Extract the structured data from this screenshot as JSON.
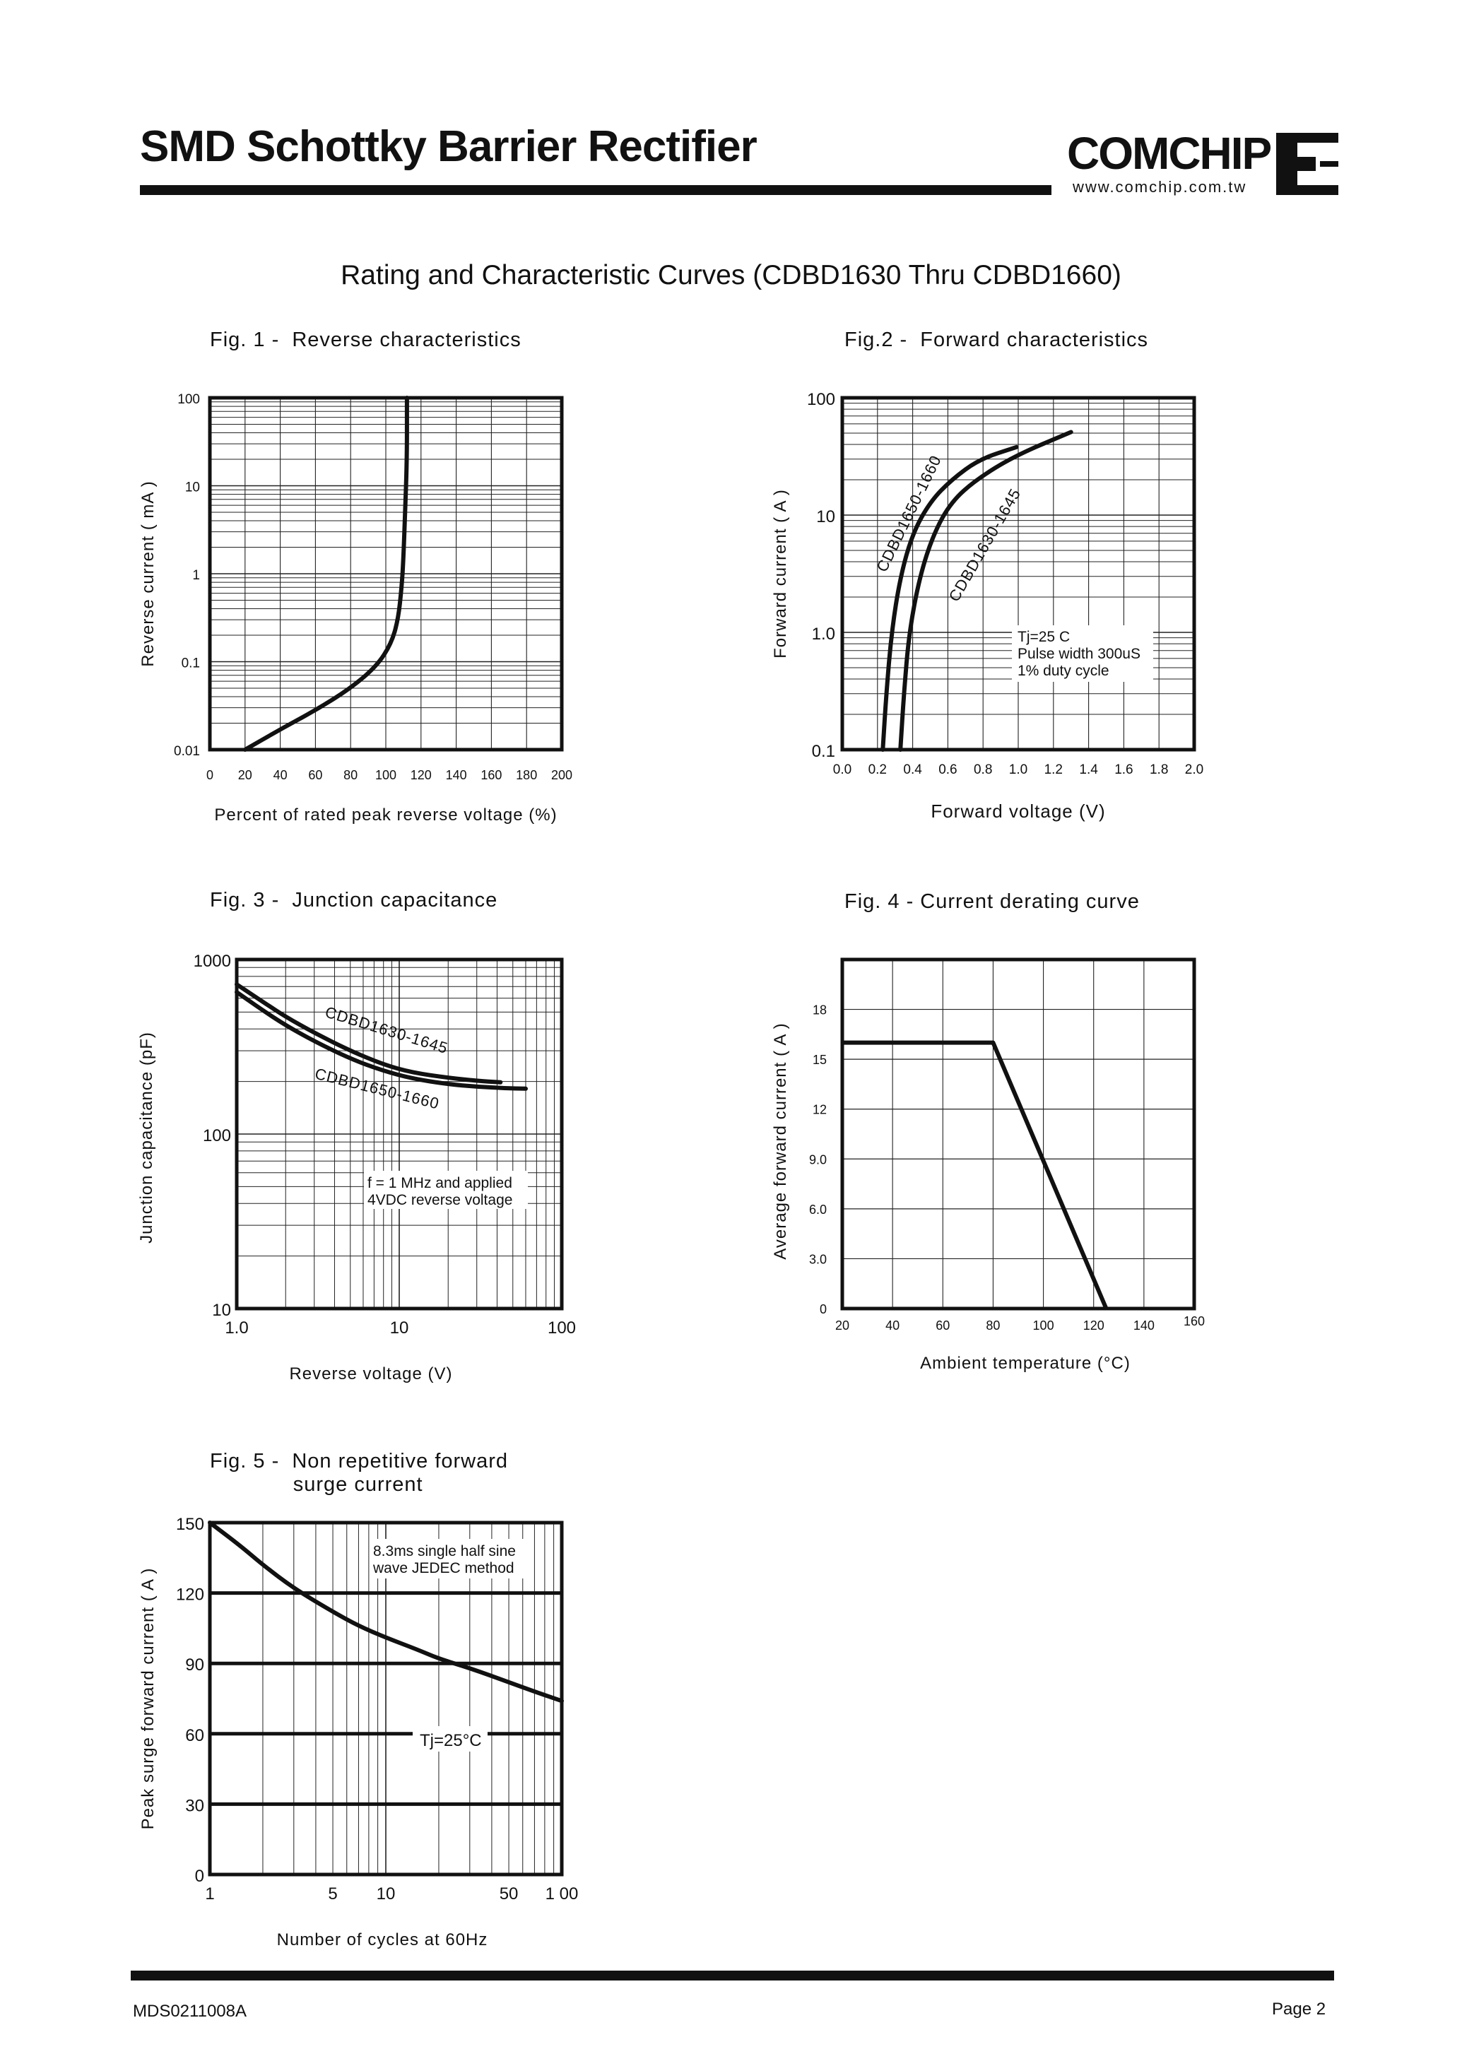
{
  "header": {
    "title": "SMD Schottky Barrier Rectifier",
    "brand": "COMCHIP",
    "website": "www.comchip.com.tw"
  },
  "page_title": "Rating and Characteristic Curves (CDBD1630 Thru CDBD1660)",
  "footer": {
    "doc_id": "MDS0211008A",
    "page": "Page 2"
  },
  "chart_data": [
    {
      "id": "fig1",
      "type": "line",
      "title": "Fig. 1 -  Reverse characteristics",
      "xlabel": "Percent of rated peak reverse voltage (%)",
      "ylabel": "Reverse current ( mA )",
      "xscale": "linear",
      "yscale": "log",
      "xlim": [
        0,
        200
      ],
      "ylim": [
        0.01,
        100
      ],
      "xticks": [
        0,
        20,
        40,
        60,
        80,
        100,
        120,
        140,
        160,
        180,
        200
      ],
      "xtick_labels": [
        "0",
        "20",
        "40",
        "60",
        "80",
        "100",
        "120",
        "140",
        "160",
        "180",
        "200"
      ],
      "yticks": [
        100,
        10,
        1,
        0.1,
        0.01
      ],
      "ytick_labels": [
        "100",
        "10",
        "1",
        "0.1",
        "0.01"
      ],
      "grid": true,
      "series": [
        {
          "x": [
            20,
            40,
            60,
            80,
            95,
            103,
            107,
            109,
            110,
            111,
            112,
            112
          ],
          "y": [
            0.01,
            0.017,
            0.028,
            0.05,
            0.09,
            0.16,
            0.3,
            0.7,
            1.5,
            5,
            20,
            100
          ]
        }
      ],
      "annotations": []
    },
    {
      "id": "fig2",
      "type": "line",
      "title": "Fig.2 -  Forward characteristics",
      "xlabel": "Forward voltage (V)",
      "ylabel": "Forward current ( A )",
      "xscale": "linear",
      "yscale": "log",
      "xlim": [
        0,
        2.0
      ],
      "ylim": [
        0.1,
        100
      ],
      "xticks": [
        0,
        0.2,
        0.4,
        0.6,
        0.8,
        1.0,
        1.2,
        1.4,
        1.6,
        1.8,
        2.0
      ],
      "xtick_labels": [
        "0.0",
        "0.2",
        "0.4",
        "0.6",
        "0.8",
        "1.0",
        "1.2",
        "1.4",
        "1.6",
        "1.8",
        "2.0"
      ],
      "yticks": [
        100,
        10,
        1.0,
        0.1
      ],
      "ytick_labels": [
        "100",
        "10",
        "1.0",
        "0.1"
      ],
      "grid": true,
      "series": [
        {
          "name": "CDBD1650-1660",
          "x": [
            0.23,
            0.25,
            0.28,
            0.33,
            0.4,
            0.5,
            0.62,
            0.78,
            0.99
          ],
          "y": [
            0.1,
            0.3,
            1,
            3,
            7,
            13,
            20,
            30,
            38
          ]
        },
        {
          "name": "CDBD1630-1645",
          "x": [
            0.33,
            0.35,
            0.38,
            0.44,
            0.52,
            0.62,
            0.76,
            0.98,
            1.3
          ],
          "y": [
            0.1,
            0.3,
            1,
            3,
            7,
            13,
            20,
            32,
            51
          ]
        }
      ],
      "annotations": [
        "Tj=25 C",
        "Pulse width 300uS",
        "1% duty cycle"
      ]
    },
    {
      "id": "fig3",
      "type": "line",
      "title": "Fig. 3 -  Junction capacitance",
      "xlabel": "Reverse voltage (V)",
      "ylabel": "Junction capacitance  (pF)",
      "xscale": "log",
      "yscale": "log",
      "xlim": [
        1,
        100
      ],
      "ylim": [
        10,
        1000
      ],
      "xticks": [
        1,
        10,
        100
      ],
      "xtick_labels": [
        "1.0",
        "10",
        "100"
      ],
      "yticks": [
        1000,
        100,
        10
      ],
      "ytick_labels": [
        "1000",
        "100",
        "10"
      ],
      "grid": true,
      "series": [
        {
          "name": "CDBD1630-1645",
          "x": [
            1,
            1.5,
            2,
            3,
            5,
            8,
            12,
            20,
            30,
            42
          ],
          "y": [
            720,
            560,
            470,
            380,
            300,
            250,
            225,
            210,
            202,
            198
          ]
        },
        {
          "name": "CDBD1650-1660",
          "x": [
            1,
            1.5,
            2,
            3,
            5,
            8,
            12,
            20,
            30,
            45,
            60
          ],
          "y": [
            650,
            500,
            420,
            340,
            270,
            230,
            208,
            193,
            187,
            183,
            182
          ]
        }
      ],
      "annotations": [
        "f = 1 MHz and applied",
        "4VDC reverse voltage"
      ]
    },
    {
      "id": "fig4",
      "type": "line",
      "title": "Fig. 4 - Current derating curve",
      "xlabel": "Ambient temperature (°C)",
      "ylabel": "Average forward current ( A )",
      "xscale": "linear",
      "yscale": "linear",
      "xlim": [
        20,
        160
      ],
      "ylim": [
        0,
        21
      ],
      "xticks": [
        20,
        40,
        60,
        80,
        100,
        120,
        140,
        160
      ],
      "xtick_labels": [
        "20",
        "40",
        "60",
        "80",
        "100",
        "120",
        "140",
        "160"
      ],
      "yticks": [
        0,
        3,
        6,
        9,
        12,
        15,
        18
      ],
      "ytick_labels": [
        "0",
        "3.0",
        "6.0",
        "9.0",
        "12",
        "15",
        "18"
      ],
      "grid": true,
      "series": [
        {
          "x": [
            20,
            80,
            125
          ],
          "y": [
            16,
            16,
            0
          ]
        }
      ],
      "annotations": []
    },
    {
      "id": "fig5",
      "type": "line",
      "title": "Fig. 5 -  Non repetitive forward\n             surge current",
      "xlabel": "Number of cycles at 60Hz",
      "ylabel": "Peak surge forward current ( A )",
      "xscale": "log",
      "yscale": "linear",
      "xlim": [
        1,
        100
      ],
      "ylim": [
        0,
        150
      ],
      "xticks": [
        1,
        5,
        10,
        50,
        100
      ],
      "xtick_labels": [
        "1",
        "5",
        "10",
        "50",
        "1 00"
      ],
      "yticks": [
        150,
        120,
        90,
        60,
        30,
        0
      ],
      "ytick_labels": [
        "150",
        "120",
        "90",
        "60",
        "30",
        "0"
      ],
      "grid": true,
      "series": [
        {
          "x": [
            1,
            1.5,
            2,
            3,
            5,
            7,
            10,
            15,
            20,
            30,
            50,
            70,
            100
          ],
          "y": [
            150,
            140,
            132,
            122,
            112,
            106,
            101,
            96,
            92,
            88,
            82,
            78,
            74
          ]
        }
      ],
      "annotations": [
        "8.3ms single half sine",
        "wave JEDEC method",
        "Tj=25°C"
      ]
    }
  ]
}
